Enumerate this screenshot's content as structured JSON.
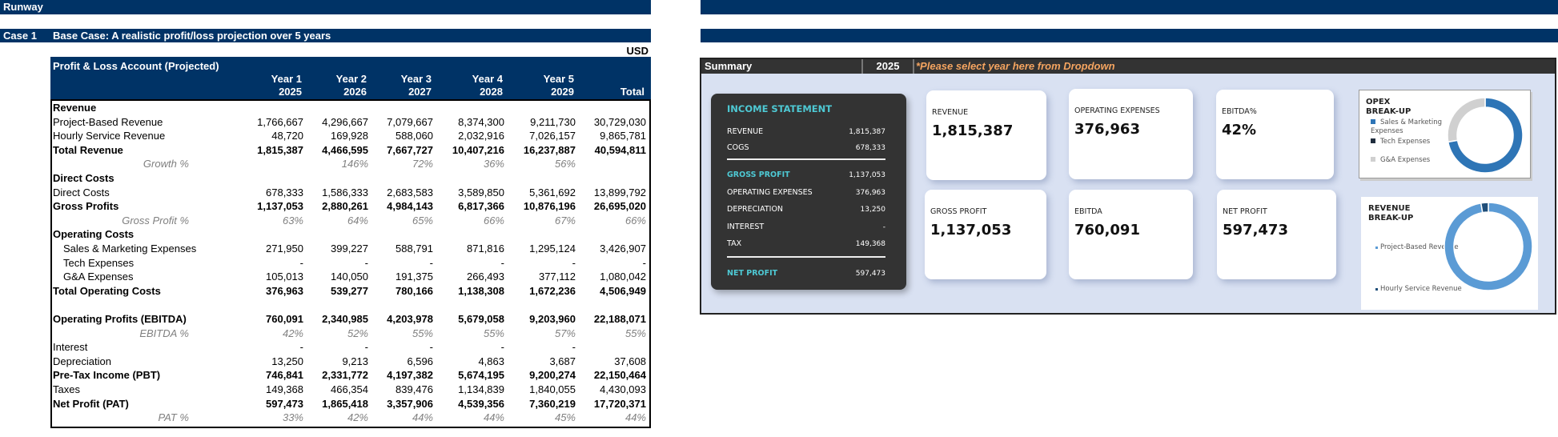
{
  "sheet": {
    "title": "Runway",
    "case_label": "Case 1",
    "case_title": "Base Case: A realistic profit/loss projection over 5 years",
    "currency": "USD"
  },
  "table": {
    "title": "Profit & Loss Account (Projected)",
    "years": [
      {
        "label": "Year 1",
        "year": "2025"
      },
      {
        "label": "Year 2",
        "year": "2026"
      },
      {
        "label": "Year 3",
        "year": "2027"
      },
      {
        "label": "Year 4",
        "year": "2028"
      },
      {
        "label": "Year 5",
        "year": "2029"
      }
    ],
    "total_label": "Total",
    "rows": [
      {
        "label": "Revenue",
        "style": "b",
        "values": []
      },
      {
        "label": "Project-Based Revenue",
        "values": [
          "1,766,667",
          "4,296,667",
          "7,079,667",
          "8,374,300",
          "9,211,730",
          "30,729,030"
        ]
      },
      {
        "label": "Hourly Service Revenue",
        "values": [
          "48,720",
          "169,928",
          "588,060",
          "2,032,916",
          "7,026,157",
          "9,865,781"
        ]
      },
      {
        "label": "Total Revenue",
        "style": "b",
        "values": [
          "1,815,387",
          "4,466,595",
          "7,667,727",
          "10,407,216",
          "16,237,887",
          "40,594,811"
        ]
      },
      {
        "label": "Growth %",
        "style": "pct",
        "values": [
          "",
          "146%",
          "72%",
          "36%",
          "56%",
          ""
        ]
      },
      {
        "label": "Direct Costs",
        "style": "b",
        "values": []
      },
      {
        "label": "Direct Costs",
        "values": [
          "678,333",
          "1,586,333",
          "2,683,583",
          "3,589,850",
          "5,361,692",
          "13,899,792"
        ]
      },
      {
        "label": "Gross Profits",
        "style": "b",
        "values": [
          "1,137,053",
          "2,880,261",
          "4,984,143",
          "6,817,366",
          "10,876,196",
          "26,695,020"
        ]
      },
      {
        "label": "Gross Profit %",
        "style": "pct",
        "values": [
          "63%",
          "64%",
          "65%",
          "66%",
          "67%",
          "66%"
        ]
      },
      {
        "label": "Operating Costs",
        "style": "b",
        "values": []
      },
      {
        "label": "Sales & Marketing Expenses",
        "style": "ind",
        "values": [
          "271,950",
          "399,227",
          "588,791",
          "871,816",
          "1,295,124",
          "3,426,907"
        ]
      },
      {
        "label": "Tech Expenses",
        "style": "ind",
        "values": [
          "-",
          "-",
          "-",
          "-",
          "-",
          "-"
        ]
      },
      {
        "label": "G&A Expenses",
        "style": "ind",
        "values": [
          "105,013",
          "140,050",
          "191,375",
          "266,493",
          "377,112",
          "1,080,042"
        ]
      },
      {
        "label": "Total Operating Costs",
        "style": "b",
        "values": [
          "376,963",
          "539,277",
          "780,166",
          "1,138,308",
          "1,672,236",
          "4,506,949"
        ]
      },
      {
        "label": "",
        "values": []
      },
      {
        "label": "Operating Profits (EBITDA)",
        "style": "b",
        "values": [
          "760,091",
          "2,340,985",
          "4,203,978",
          "5,679,058",
          "9,203,960",
          "22,188,071"
        ]
      },
      {
        "label": "EBITDA %",
        "style": "pct",
        "values": [
          "42%",
          "52%",
          "55%",
          "55%",
          "57%",
          "55%"
        ]
      },
      {
        "label": "Interest",
        "values": [
          "-",
          "-",
          "-",
          "-",
          "-",
          ""
        ]
      },
      {
        "label": "Depreciation",
        "values": [
          "13,250",
          "9,213",
          "6,596",
          "4,863",
          "3,687",
          "37,608"
        ]
      },
      {
        "label": "Pre-Tax Income (PBT)",
        "style": "b",
        "values": [
          "746,841",
          "2,331,772",
          "4,197,382",
          "5,674,195",
          "9,200,274",
          "22,150,464"
        ]
      },
      {
        "label": "Taxes",
        "values": [
          "149,368",
          "466,354",
          "839,476",
          "1,134,839",
          "1,840,055",
          "4,430,093"
        ]
      },
      {
        "label": "Net Profit (PAT)",
        "style": "b",
        "values": [
          "597,473",
          "1,865,418",
          "3,357,906",
          "4,539,356",
          "7,360,219",
          "17,720,371"
        ]
      },
      {
        "label": "PAT %",
        "style": "pct",
        "values": [
          "33%",
          "42%",
          "44%",
          "44%",
          "45%",
          "44%"
        ]
      }
    ]
  },
  "summary": {
    "title": "Summary",
    "selected_year": "2025",
    "hint": "*Please select year here from Dropdown",
    "income": {
      "title": "INCOME STATEMENT",
      "rows": [
        {
          "label": "REVENUE",
          "value": "1,815,387"
        },
        {
          "label": "COGS",
          "value": "678,333"
        },
        {
          "label": "GROSS PROFIT",
          "value": "1,137,053"
        },
        {
          "label": "OPERATING EXPENSES",
          "value": "376,963"
        },
        {
          "label": "DEPRECIATION",
          "value": "13,250"
        },
        {
          "label": "INTEREST",
          "value": "-"
        },
        {
          "label": "TAX",
          "value": "149,368"
        },
        {
          "label": "NET PROFIT",
          "value": "597,473"
        }
      ]
    },
    "cards": [
      {
        "label": "REVENUE",
        "value": "1,815,387"
      },
      {
        "label": "OPERATING EXPENSES",
        "value": "376,963"
      },
      {
        "label": "EBITDA%",
        "value": "42%"
      },
      {
        "label": "GROSS PROFIT",
        "value": "1,137,053"
      },
      {
        "label": "EBITDA",
        "value": "760,091"
      },
      {
        "label": "NET PROFIT",
        "value": "597,473"
      }
    ],
    "opex_chart": {
      "title1": "OPEX",
      "title2": "BREAK-UP",
      "type": "pie",
      "series": [
        {
          "name": "Sales & Marketing Expenses",
          "value": 271950,
          "color": "#2e75b6"
        },
        {
          "name": "Tech Expenses",
          "value": 0,
          "color": "#1f2d3d"
        },
        {
          "name": "G&A Expenses",
          "value": 105013,
          "color": "#d0d0d0"
        }
      ]
    },
    "revenue_chart": {
      "title1": "REVENUE",
      "title2": "BREAK-UP",
      "type": "pie",
      "series": [
        {
          "name": "Project-Based Revenue",
          "value": 1766667,
          "color": "#5b9bd5"
        },
        {
          "name": "Hourly Service Revenue",
          "value": 48720,
          "color": "#1f4e79"
        }
      ]
    }
  },
  "colors": {
    "navy": "#003366",
    "hint": "#f4a460",
    "cyan": "#4ec9d4",
    "panel": "#d9e1f2"
  }
}
